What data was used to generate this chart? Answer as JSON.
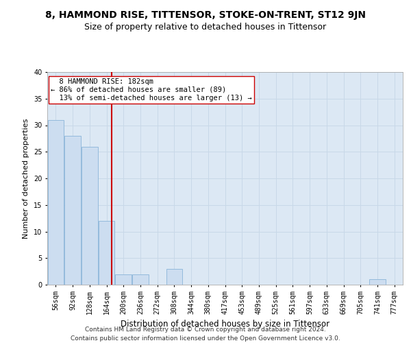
{
  "title": "8, HAMMOND RISE, TITTENSOR, STOKE-ON-TRENT, ST12 9JN",
  "subtitle": "Size of property relative to detached houses in Tittensor",
  "xlabel": "Distribution of detached houses by size in Tittensor",
  "ylabel": "Number of detached properties",
  "categories": [
    "56sqm",
    "92sqm",
    "128sqm",
    "164sqm",
    "200sqm",
    "236sqm",
    "272sqm",
    "308sqm",
    "344sqm",
    "380sqm",
    "417sqm",
    "453sqm",
    "489sqm",
    "525sqm",
    "561sqm",
    "597sqm",
    "633sqm",
    "669sqm",
    "705sqm",
    "741sqm",
    "777sqm"
  ],
  "values": [
    31,
    28,
    26,
    12,
    2,
    2,
    0,
    3,
    0,
    0,
    0,
    0,
    0,
    0,
    0,
    0,
    0,
    0,
    0,
    1,
    0
  ],
  "bar_color": "#ccddf0",
  "bar_edge_color": "#8ab4d8",
  "vline_x": 3.3,
  "vline_color": "#cc0000",
  "annotation_text": "  8 HAMMOND RISE: 182sqm\n← 86% of detached houses are smaller (89)\n  13% of semi-detached houses are larger (13) →",
  "annotation_box_color": "#ffffff",
  "annotation_box_edge": "#cc0000",
  "ylim": [
    0,
    40
  ],
  "yticks": [
    0,
    5,
    10,
    15,
    20,
    25,
    30,
    35,
    40
  ],
  "grid_color": "#c8d8e8",
  "bg_color": "#dce8f4",
  "footer_line1": "Contains HM Land Registry data © Crown copyright and database right 2024.",
  "footer_line2": "Contains public sector information licensed under the Open Government Licence v3.0.",
  "title_fontsize": 10,
  "subtitle_fontsize": 9,
  "xlabel_fontsize": 8.5,
  "ylabel_fontsize": 8,
  "tick_fontsize": 7,
  "annotation_fontsize": 7.5,
  "footer_fontsize": 6.5
}
